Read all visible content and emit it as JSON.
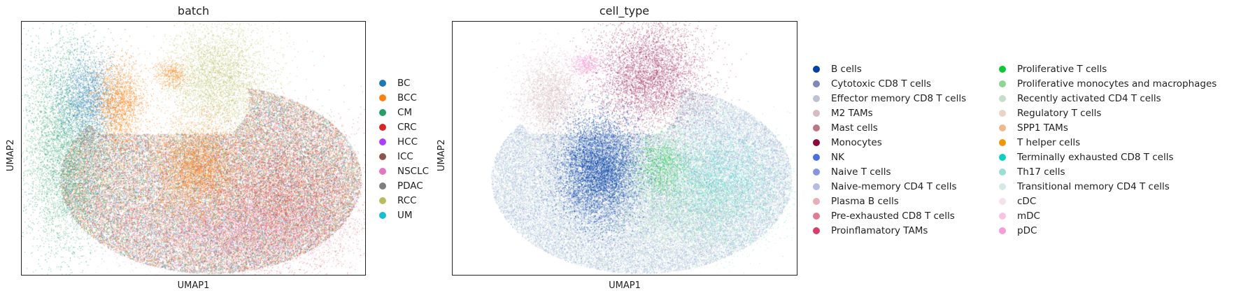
{
  "chart_data": [
    {
      "type": "scatter",
      "title": "batch",
      "xlabel": "UMAP1",
      "ylabel": "UMAP2",
      "grid": false,
      "legend_position": "right",
      "legend_columns": 1,
      "series": [
        {
          "name": "BC",
          "color": "#1f77b4"
        },
        {
          "name": "BCC",
          "color": "#ff7f0e"
        },
        {
          "name": "CM",
          "color": "#279e68"
        },
        {
          "name": "CRC",
          "color": "#d62728"
        },
        {
          "name": "HCC",
          "color": "#aa40fc"
        },
        {
          "name": "ICC",
          "color": "#8c564b"
        },
        {
          "name": "NSCLC",
          "color": "#e377c2"
        },
        {
          "name": "PDAC",
          "color": "#7f7f7f"
        },
        {
          "name": "RCC",
          "color": "#b5bd61"
        },
        {
          "name": "UM",
          "color": "#17becf"
        }
      ]
    },
    {
      "type": "scatter",
      "title": "cell_type",
      "xlabel": "UMAP1",
      "ylabel": "UMAP2",
      "grid": false,
      "legend_position": "right",
      "legend_columns": 2,
      "series": [
        {
          "name": "B cells",
          "color": "#023fa5"
        },
        {
          "name": "Cytotoxic CD8 T cells",
          "color": "#7d87b9"
        },
        {
          "name": "Effector memory CD8 T cells",
          "color": "#bec1d4"
        },
        {
          "name": "M2 TAMs",
          "color": "#d6bcc0"
        },
        {
          "name": "Mast cells",
          "color": "#bb7784"
        },
        {
          "name": "Monocytes",
          "color": "#8e063b"
        },
        {
          "name": "NK",
          "color": "#4a6fe3"
        },
        {
          "name": "Naive T cells",
          "color": "#8595e1"
        },
        {
          "name": "Naive-memory CD4 T cells",
          "color": "#b5bbe3"
        },
        {
          "name": "Plasma B cells",
          "color": "#e6afb9"
        },
        {
          "name": "Pre-exhausted CD8 T cells",
          "color": "#e07b91"
        },
        {
          "name": "Proinflamatory TAMs",
          "color": "#d33f6a"
        },
        {
          "name": "Proliferative T cells",
          "color": "#11c638"
        },
        {
          "name": "Proliferative monocytes and macrophages",
          "color": "#8dd593"
        },
        {
          "name": "Recently activated CD4 T cells",
          "color": "#c6dec7"
        },
        {
          "name": "Regulatory T cells",
          "color": "#ead3c6"
        },
        {
          "name": "SPP1 TAMs",
          "color": "#f0b98d"
        },
        {
          "name": "T helper cells",
          "color": "#ef9708"
        },
        {
          "name": "Terminally exhausted CD8 T cells",
          "color": "#0fcfc0"
        },
        {
          "name": "Th17 cells",
          "color": "#9cded6"
        },
        {
          "name": "Transitional memory CD4 T cells",
          "color": "#d5eae7"
        },
        {
          "name": "cDC",
          "color": "#f3e1eb"
        },
        {
          "name": "mDC",
          "color": "#f6c4e1"
        },
        {
          "name": "pDC",
          "color": "#f79cd4"
        }
      ]
    }
  ]
}
